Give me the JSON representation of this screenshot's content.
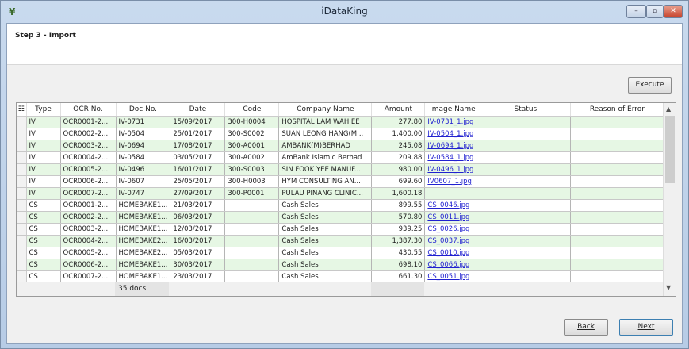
{
  "window": {
    "title": "iDataKing",
    "minimize": "–",
    "maximize": "▫",
    "close": "✕"
  },
  "step_title": "Step 3 - Import",
  "buttons": {
    "execute": "Execute",
    "back": "Back",
    "next": "Next"
  },
  "columns": [
    "Type",
    "OCR No.",
    "Doc No.",
    "Date",
    "Code",
    "Company Name",
    "Amount",
    "Image Name",
    "Status",
    "Reason of Error"
  ],
  "rows": [
    [
      "IV",
      "OCR0001-2...",
      "IV-0731",
      "15/09/2017",
      "300-H0004",
      "HOSPITAL LAM WAH EE",
      "277.80",
      "IV-0731_1.jpg",
      "",
      ""
    ],
    [
      "IV",
      "OCR0002-2...",
      "IV-0504",
      "25/01/2017",
      "300-S0002",
      "SUAN LEONG HANG(M...",
      "1,400.00",
      "IV-0504_1.jpg",
      "",
      ""
    ],
    [
      "IV",
      "OCR0003-2...",
      "IV-0694",
      "17/08/2017",
      "300-A0001",
      "AMBANK(M)BERHAD",
      "245.08",
      "IV-0694_1.jpg",
      "",
      ""
    ],
    [
      "IV",
      "OCR0004-2...",
      "IV-0584",
      "03/05/2017",
      "300-A0002",
      "AmBank Islamic Berhad",
      "209.88",
      "IV-0584_1.jpg",
      "",
      ""
    ],
    [
      "IV",
      "OCR0005-2...",
      "IV-0496",
      "16/01/2017",
      "300-S0003",
      "SIN FOOK YEE MANUF...",
      "980.00",
      "IV-0496_1.jpg",
      "",
      ""
    ],
    [
      "IV",
      "OCR0006-2...",
      "IV-0607",
      "25/05/2017",
      "300-H0003",
      "HYM CONSULTING AN...",
      "699.60",
      "IV0607_1.jpg",
      "",
      ""
    ],
    [
      "IV",
      "OCR0007-2...",
      "IV-0747",
      "27/09/2017",
      "300-P0001",
      "PULAU PINANG CLINIC...",
      "1,600.18",
      "",
      "",
      ""
    ],
    [
      "CS",
      "OCR0001-2...",
      "HOMEBAKE1...",
      "21/03/2017",
      "",
      "Cash Sales",
      "899.55",
      "CS_0046.jpg",
      "",
      ""
    ],
    [
      "CS",
      "OCR0002-2...",
      "HOMEBAKE1...",
      "06/03/2017",
      "",
      "Cash Sales",
      "570.80",
      "CS_0011.jpg",
      "",
      ""
    ],
    [
      "CS",
      "OCR0003-2...",
      "HOMEBAKE1...",
      "12/03/2017",
      "",
      "Cash Sales",
      "939.25",
      "CS_0026.jpg",
      "",
      ""
    ],
    [
      "CS",
      "OCR0004-2...",
      "HOMEBAKE2...",
      "16/03/2017",
      "",
      "Cash Sales",
      "1,387.30",
      "CS_0037.jpg",
      "",
      ""
    ],
    [
      "CS",
      "OCR0005-2...",
      "HOMEBAKE2...",
      "05/03/2017",
      "",
      "Cash Sales",
      "430.55",
      "CS_0010.jpg",
      "",
      ""
    ],
    [
      "CS",
      "OCR0006-2...",
      "HOMEBAKE1...",
      "30/03/2017",
      "",
      "Cash Sales",
      "698.10",
      "CS_0066.jpg",
      "",
      ""
    ],
    [
      "CS",
      "OCR0007-2...",
      "HOMEBAKE1...",
      "23/03/2017",
      "",
      "Cash Sales",
      "661.30",
      "CS_0051.jpg",
      "",
      ""
    ]
  ],
  "footer": {
    "doc_count": "35 docs"
  },
  "colors": {
    "alt_row": "#e6f7e4",
    "link": "#2020d0"
  }
}
